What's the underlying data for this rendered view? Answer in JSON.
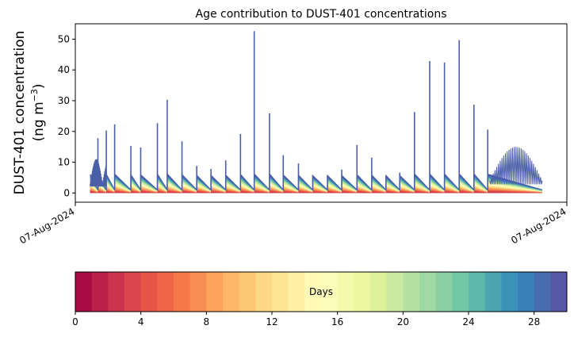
{
  "chart_data": [
    {
      "type": "area",
      "title": "Age contribution to DUST-401 concentrations",
      "ylabel_line1": "DUST-401 concentration",
      "ylabel_line2_prefix": "(ng m",
      "ylabel_line2_sup": "−3",
      "ylabel_line2_suffix": ")",
      "xlabel": "",
      "x_tick_labels": [
        "07-Aug-2024",
        "07-Aug-2024"
      ],
      "xlim": [
        0,
        100
      ],
      "ylim": [
        -3,
        55
      ],
      "y_ticks": [
        0,
        10,
        20,
        30,
        40,
        50
      ],
      "grid": false,
      "series_colormap": "Spectral",
      "spike_events": [
        {
          "x": 4.6,
          "peak": 17.8
        },
        {
          "x": 6.3,
          "peak": 20.3
        },
        {
          "x": 8.0,
          "peak": 22.3
        },
        {
          "x": 11.3,
          "peak": 15.3
        },
        {
          "x": 13.3,
          "peak": 14.8
        },
        {
          "x": 16.7,
          "peak": 22.7
        },
        {
          "x": 18.7,
          "peak": 30.3
        },
        {
          "x": 21.7,
          "peak": 16.8
        },
        {
          "x": 24.7,
          "peak": 8.8
        },
        {
          "x": 27.6,
          "peak": 7.8
        },
        {
          "x": 30.6,
          "peak": 10.6
        },
        {
          "x": 33.6,
          "peak": 19.2
        },
        {
          "x": 36.4,
          "peak": 52.6
        },
        {
          "x": 39.5,
          "peak": 25.9
        },
        {
          "x": 42.3,
          "peak": 12.3
        },
        {
          "x": 45.4,
          "peak": 9.6
        },
        {
          "x": 48.3,
          "peak": 5.6
        },
        {
          "x": 51.3,
          "peak": 5.8
        },
        {
          "x": 54.2,
          "peak": 7.6
        },
        {
          "x": 57.3,
          "peak": 15.6
        },
        {
          "x": 60.3,
          "peak": 11.5
        },
        {
          "x": 63.2,
          "peak": 5.6
        },
        {
          "x": 66.0,
          "peak": 6.6
        },
        {
          "x": 69.0,
          "peak": 26.3
        },
        {
          "x": 72.1,
          "peak": 42.9
        },
        {
          "x": 75.1,
          "peak": 42.4
        },
        {
          "x": 78.1,
          "peak": 49.7
        },
        {
          "x": 81.1,
          "peak": 28.7
        },
        {
          "x": 83.9,
          "peak": 20.6
        }
      ],
      "dense_regions": [
        {
          "x_start": 3.0,
          "x_end": 6.3,
          "low": 3.0,
          "high": 11.0
        },
        {
          "x_start": 84.3,
          "x_end": 95.0,
          "low": 4.0,
          "high": 15.0
        }
      ],
      "baseline_decay": {
        "start": 5.5,
        "end": 1.0
      }
    },
    {
      "type": "heatmap",
      "role": "colorbar",
      "label": "Days",
      "range": [
        0,
        30
      ],
      "n_bins": 30,
      "colormap": "Spectral",
      "tick_values": [
        0,
        4,
        8,
        12,
        16,
        20,
        24,
        28
      ],
      "tick_labels": [
        "0",
        "4",
        "8",
        "12",
        "16",
        "20",
        "24",
        "28"
      ]
    }
  ]
}
